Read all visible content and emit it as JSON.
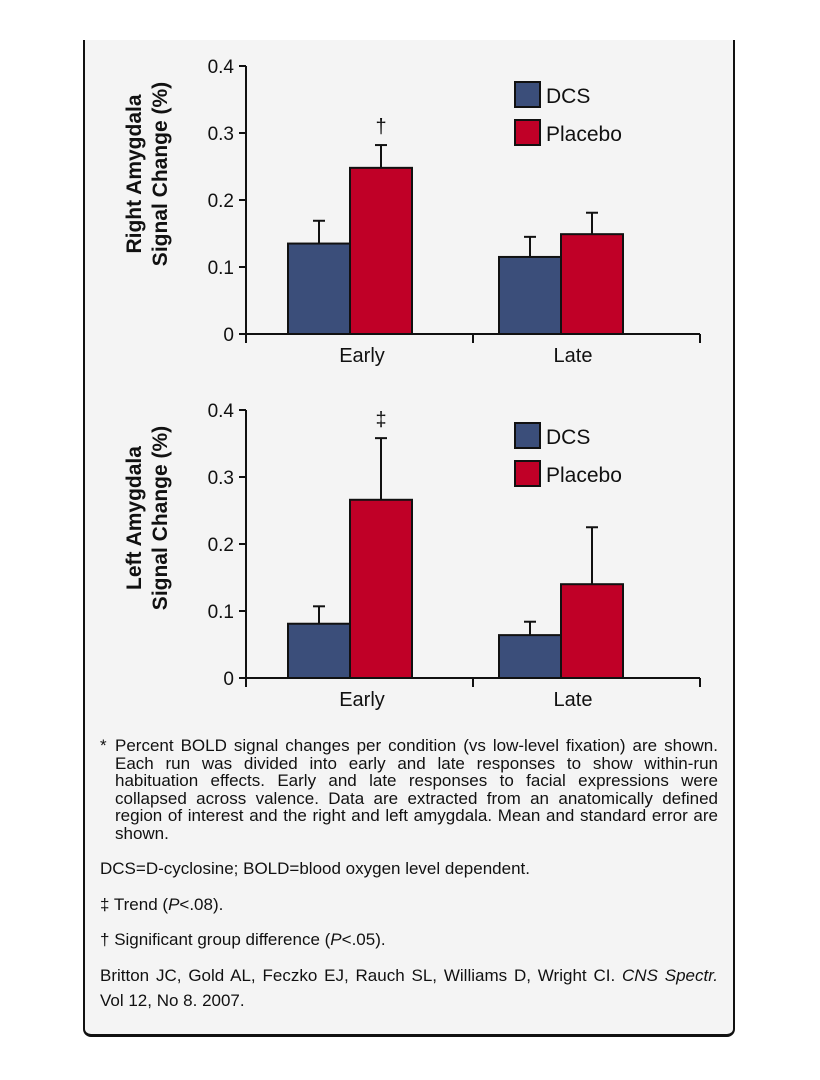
{
  "colors": {
    "DCS": "#3b4e7a",
    "Placebo": "#c00027",
    "background": "#f4f4f4"
  },
  "chart_data": [
    {
      "type": "bar",
      "ylabel": [
        "Right Amygdala",
        "Signal Change (%)"
      ],
      "categories": [
        "Early",
        "Late"
      ],
      "ylim": [
        0,
        0.4
      ],
      "yticks": [
        "0",
        "0.1",
        "0.2",
        "0.3",
        "0.4"
      ],
      "legend": "top-right",
      "series": [
        {
          "name": "DCS",
          "values": [
            0.135,
            0.115
          ],
          "errors": [
            0.034,
            0.03
          ]
        },
        {
          "name": "Placebo",
          "values": [
            0.248,
            0.149
          ],
          "errors": [
            0.034,
            0.032
          ]
        }
      ],
      "annotations": [
        {
          "category": "Early",
          "series": "Placebo",
          "text": "†"
        }
      ]
    },
    {
      "type": "bar",
      "ylabel": [
        "Left Amygdala",
        "Signal Change (%)"
      ],
      "categories": [
        "Early",
        "Late"
      ],
      "ylim": [
        0,
        0.4
      ],
      "yticks": [
        "0",
        "0.1",
        "0.2",
        "0.3",
        "0.4"
      ],
      "legend": "top-right",
      "series": [
        {
          "name": "DCS",
          "values": [
            0.081,
            0.064
          ],
          "errors": [
            0.026,
            0.02
          ]
        },
        {
          "name": "Placebo",
          "values": [
            0.266,
            0.14
          ],
          "errors": [
            0.092,
            0.085
          ]
        }
      ],
      "annotations": [
        {
          "category": "Early",
          "series": "Placebo",
          "text": "‡"
        }
      ]
    }
  ],
  "caption": {
    "star": "*",
    "note": "Percent BOLD signal changes per condition (vs low-level fixation) are shown. Each run was divided into early and late responses to show within-run habituation effects. Early and late responses to facial expressions were collapsed across valence. Data are extracted from an anatomically defined region of interest and the right and left amygdala. Mean and standard error are shown.",
    "abbrev": "DCS=D-cyclosine; BOLD=blood oxygen level dependent.",
    "trend_symbol": "‡",
    "trend_text": " Trend (",
    "trend_p": "P",
    "trend_end": "<.08).",
    "sig_symbol": "†",
    "sig_text": " Significant group difference (",
    "sig_p": "P",
    "sig_end": "<.05).",
    "citation_authors": "Britton JC, Gold AL, Feczko EJ, Rauch SL, Williams D, Wright CI. ",
    "citation_journal": "CNS Spectr.",
    "citation_rest": " Vol 12, No 8. 2007."
  }
}
